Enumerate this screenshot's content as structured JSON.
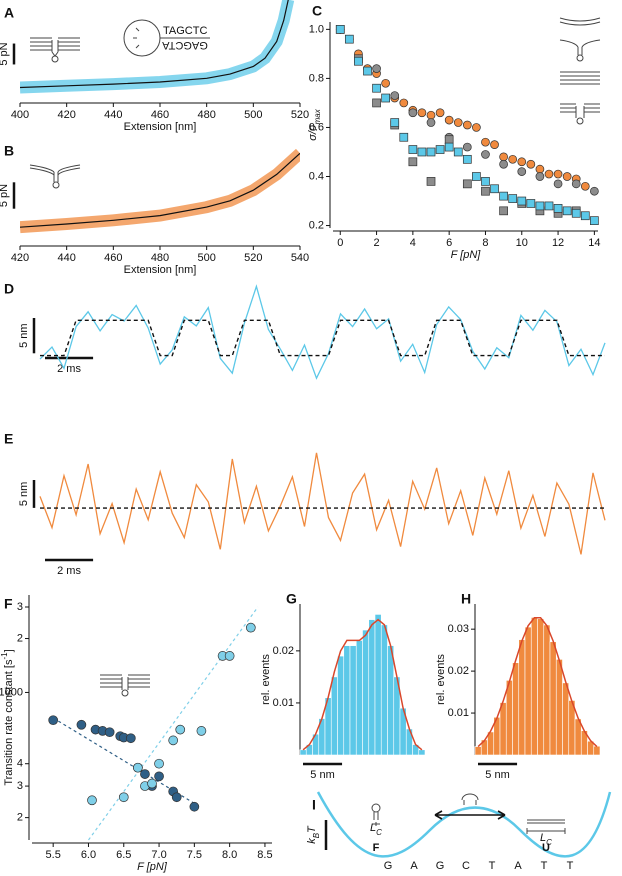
{
  "chart_data": [
    {
      "type": "line",
      "panel": "A",
      "color": "#5cc8e8",
      "xlabel": "Extension [nm]",
      "x": [
        400,
        420,
        440,
        460,
        480,
        490,
        500,
        505,
        510,
        513,
        515
      ],
      "values": [
        1,
        1.4,
        1.8,
        2.3,
        3.2,
        4.2,
        6,
        8,
        12,
        17,
        22
      ],
      "xlim": [
        400,
        520
      ],
      "xticks": [
        400,
        420,
        440,
        460,
        480,
        500,
        520
      ],
      "ylim": [
        -2,
        20
      ],
      "scalebar_y": {
        "value": 5,
        "label": "5 pN"
      },
      "inset_sequence": [
        "TAGCTC",
        "GAGCTA"
      ]
    },
    {
      "type": "line",
      "panel": "B",
      "color": "#f08a3e",
      "xlabel": "Extension [nm]",
      "x": [
        420,
        440,
        460,
        480,
        500,
        510,
        520,
        530,
        540
      ],
      "values": [
        1,
        1.6,
        2.3,
        3.2,
        4.8,
        6,
        8,
        11,
        15
      ],
      "xlim": [
        420,
        540
      ],
      "xticks": [
        420,
        440,
        460,
        480,
        500,
        520,
        540
      ],
      "ylim": [
        -2,
        16
      ],
      "scalebar_y": {
        "value": 5,
        "label": "5 pN"
      }
    },
    {
      "type": "scatter",
      "panel": "C",
      "xlabel": "F [pN]",
      "ylabel": [
        "σ/σ",
        "max"
      ],
      "xlim": [
        -0.4,
        14.2
      ],
      "xticks": [
        0,
        2,
        4,
        6,
        8,
        10,
        12,
        14
      ],
      "ylim": [
        0.19,
        1.03
      ],
      "yticks": [
        0.2,
        0.4,
        0.6,
        0.8,
        {
          "value": 1,
          "label": "1.0"
        }
      ],
      "series": [
        {
          "color": "#f08a3e",
          "marker": "circle",
          "x": [
            0,
            0.5,
            1,
            1.5,
            2,
            2.5,
            3,
            3.5,
            4,
            4.5,
            5,
            5.5,
            6,
            6.5,
            7,
            7.5,
            8,
            8.5,
            9,
            9.5,
            10,
            10.5,
            11,
            11.5,
            12,
            12.5,
            13,
            13.5
          ],
          "values": [
            1,
            0.96,
            0.9,
            0.84,
            0.82,
            0.78,
            0.72,
            0.7,
            0.67,
            0.66,
            0.65,
            0.66,
            0.63,
            0.62,
            0.61,
            0.6,
            0.54,
            0.53,
            0.48,
            0.47,
            0.46,
            0.45,
            0.43,
            0.41,
            0.41,
            0.4,
            0.39,
            0.36
          ]
        },
        {
          "color": "#8c8c8c",
          "marker": "circle",
          "x": [
            0,
            1,
            2,
            3,
            4,
            5,
            6,
            7,
            8,
            9,
            10,
            11,
            12,
            13,
            14
          ],
          "values": [
            1,
            0.88,
            0.84,
            0.73,
            0.66,
            0.62,
            0.56,
            0.52,
            0.49,
            0.45,
            0.42,
            0.4,
            0.37,
            0.37,
            0.34
          ]
        },
        {
          "color": "#8c8c8c",
          "marker": "square",
          "x": [
            0,
            1,
            2,
            3,
            4,
            5,
            6,
            7,
            8,
            9,
            10,
            11,
            12,
            13
          ],
          "values": [
            1,
            0.88,
            0.7,
            0.61,
            0.46,
            0.38,
            0.55,
            0.37,
            0.34,
            0.26,
            0.29,
            0.26,
            0.25,
            0.26
          ]
        },
        {
          "color": "#5cc8e8",
          "marker": "square",
          "x": [
            0,
            0.5,
            1,
            1.5,
            2,
            2.5,
            3,
            3.5,
            4,
            4.5,
            5,
            5.5,
            6,
            6.5,
            7,
            7.5,
            8,
            8.5,
            9,
            9.5,
            10,
            10.5,
            11,
            11.5,
            12,
            12.5,
            13,
            13.5,
            14
          ],
          "values": [
            1,
            0.96,
            0.87,
            0.83,
            0.76,
            0.72,
            0.62,
            0.56,
            0.51,
            0.5,
            0.5,
            0.51,
            0.52,
            0.5,
            0.47,
            0.4,
            0.38,
            0.35,
            0.32,
            0.31,
            0.3,
            0.29,
            0.28,
            0.28,
            0.27,
            0.26,
            0.25,
            0.24,
            0.22
          ]
        }
      ]
    },
    {
      "type": "trace",
      "panel": "D",
      "color": "#5cc8e8",
      "x": [
        0,
        0.5,
        1,
        1.5,
        2,
        2.5,
        3,
        3.5,
        4,
        4.5,
        5,
        5.5,
        6,
        6.5,
        7,
        7.5,
        8,
        8.5,
        9,
        9.5,
        10,
        10.5,
        11,
        11.5,
        12,
        12.5,
        13,
        13.5,
        14,
        14.5,
        15,
        15.5,
        16,
        16.5,
        17,
        17.5,
        18,
        18.5,
        19,
        19.5,
        20,
        20.5,
        21,
        21.5,
        22,
        22.5,
        23,
        23.5
      ],
      "values": [
        -0.5,
        1.2,
        -1.8,
        4.1,
        6.2,
        3.5,
        5.8,
        4.9,
        7.1,
        3.9,
        -1.2,
        0.8,
        5.5,
        4.2,
        6.8,
        -0.4,
        -2.5,
        4.6,
        9.8,
        3.7,
        0.9,
        -2.1,
        1.5,
        -3.2,
        0.3,
        5.9,
        4.1,
        6.6,
        3.8,
        5.2,
        -0.8,
        1.6,
        -2.4,
        4.4,
        6.9,
        5.1,
        0.6,
        -1.9,
        1.1,
        -0.3,
        5.7,
        3.6,
        6.4,
        4.8,
        -1.4,
        0.9,
        -2.7,
        1.8
      ],
      "fit": [
        0,
        0,
        0,
        5,
        5,
        5,
        5,
        5,
        5,
        5,
        0,
        0,
        5,
        5,
        5,
        0,
        0,
        5,
        5,
        5,
        0,
        0,
        0,
        0,
        0,
        5,
        5,
        5,
        5,
        5,
        0,
        0,
        0,
        5,
        5,
        5,
        0,
        0,
        0,
        0,
        5,
        5,
        5,
        5,
        0,
        0,
        0,
        0
      ],
      "xlim": [
        0,
        23.5
      ],
      "ylim": [
        -7,
        10
      ],
      "scalebar_y": {
        "value": 5,
        "label": "5 nm"
      },
      "scalebar_x": {
        "value": 2,
        "label": "2 ms"
      }
    },
    {
      "type": "trace",
      "panel": "E",
      "color": "#f08a3e",
      "x": [
        0,
        0.5,
        1,
        1.5,
        2,
        2.5,
        3,
        3.5,
        4,
        4.5,
        5,
        5.5,
        6,
        6.5,
        7,
        7.5,
        8,
        8.5,
        9,
        9.5,
        10,
        10.5,
        11,
        11.5,
        12,
        12.5,
        13,
        13.5,
        14,
        14.5,
        15,
        15.5,
        16,
        16.5,
        17,
        17.5,
        18,
        18.5,
        19,
        19.5,
        20,
        20.5,
        21,
        21.5,
        22,
        22.5,
        23,
        23.5
      ],
      "values": [
        2.1,
        -3.5,
        5.8,
        -1.2,
        7.9,
        -4.6,
        0.8,
        -6.2,
        3.4,
        -2.1,
        6.5,
        -0.9,
        -5.3,
        4.2,
        1.1,
        -7.4,
        8.8,
        -2.6,
        3.9,
        -4.1,
        0.4,
        5.6,
        -3.3,
        9.9,
        -1.7,
        -5.8,
        2.7,
        6.1,
        -3.9,
        1.4,
        -6.9,
        4.8,
        -0.2,
        7.2,
        -2.8,
        3.1,
        -4.9,
        5.4,
        -1.1,
        6.7,
        -3.6,
        2.3,
        -5.1,
        4.5,
        0.7,
        -8.3,
        6.3,
        -2.2
      ],
      "level": 0,
      "xlim": [
        0,
        23.5
      ],
      "ylim": [
        -12,
        14
      ],
      "scalebar_y": {
        "value": 5,
        "label": "5 nm"
      },
      "scalebar_x": {
        "value": 2,
        "label": "2 ms"
      }
    },
    {
      "type": "scatter",
      "panel": "F",
      "xlabel": "F [pN]",
      "ylabel": [
        "Transition rate constant [s",
        "-1",
        "]"
      ],
      "ylog": true,
      "xlim": [
        5.2,
        8.6
      ],
      "xticks": [
        5.5,
        {
          "value": 6,
          "label": "6.0"
        },
        6.5,
        {
          "value": 7,
          "label": "7.0"
        },
        7.5,
        {
          "value": 8,
          "label": "8.0"
        },
        8.5
      ],
      "ylim": [
        150,
        3500
      ],
      "yticks": [
        {
          "value": 200,
          "label": "2"
        },
        {
          "value": 300,
          "label": "3"
        },
        {
          "value": 400,
          "label": "4"
        },
        1000,
        {
          "value": 2000,
          "label": "2"
        },
        {
          "value": 3000,
          "label": "3"
        }
      ],
      "series": [
        {
          "color": "#2f5f86",
          "marker": "circle",
          "x": [
            5.5,
            5.9,
            6.1,
            6.2,
            6.3,
            6.45,
            6.5,
            6.6,
            6.7,
            6.8,
            6.9,
            7.0,
            7.2,
            7.25,
            7.5
          ],
          "values": [
            700,
            660,
            620,
            610,
            600,
            570,
            560,
            555,
            380,
            350,
            300,
            340,
            280,
            260,
            230
          ],
          "fit_x": [
            5.5,
            7.5
          ],
          "fit_y": [
            720,
            240
          ]
        },
        {
          "color": "#7fcfe8",
          "marker": "circle",
          "x": [
            6.05,
            6.5,
            6.7,
            6.8,
            6.9,
            7.0,
            7.2,
            7.3,
            7.6,
            7.9,
            8.0,
            8.3
          ],
          "values": [
            250,
            260,
            380,
            300,
            310,
            400,
            540,
            620,
            610,
            1600,
            1600,
            2300
          ],
          "fit_x": [
            6.0,
            8.4
          ],
          "fit_y": [
            150,
            3000
          ]
        }
      ]
    },
    {
      "type": "histogram",
      "panel": "G",
      "color": "#5cc8e8",
      "fit_color": "#d9472b",
      "ylabel": "rel. events",
      "bins": [
        -8,
        -7.2,
        -6.4,
        -5.6,
        -4.8,
        -4,
        -3.2,
        -2.4,
        -1.6,
        -0.8,
        0,
        0.8,
        1.6,
        2.4,
        3.2,
        4,
        4.8,
        5.6,
        6.4,
        7.2,
        8
      ],
      "counts": [
        0.001,
        0.002,
        0.004,
        0.007,
        0.011,
        0.015,
        0.019,
        0.021,
        0.021,
        0.022,
        0.024,
        0.026,
        0.027,
        0.025,
        0.021,
        0.015,
        0.009,
        0.005,
        0.002,
        0.001
      ],
      "fit_x": [
        -7.6,
        -6.8,
        -6,
        -5.2,
        -4.4,
        -3.6,
        -2.8,
        -2,
        -1.2,
        -0.4,
        0.4,
        1.2,
        2,
        2.8,
        3.6,
        4.4,
        5.2,
        6,
        6.8,
        7.6
      ],
      "fit": [
        0.001,
        0.002,
        0.004,
        0.007,
        0.011,
        0.016,
        0.02,
        0.022,
        0.022,
        0.022,
        0.023,
        0.025,
        0.026,
        0.025,
        0.021,
        0.015,
        0.009,
        0.005,
        0.002,
        0.001
      ],
      "xlim": [
        -8,
        8
      ],
      "ylim": [
        0,
        0.029
      ],
      "yticks": [
        0.01,
        0.02
      ],
      "scalebar_x": {
        "value": 5,
        "label": "5 nm"
      }
    },
    {
      "type": "histogram",
      "panel": "H",
      "color": "#f08a3e",
      "fit_color": "#d9472b",
      "ylabel": "rel. events",
      "bins": [
        -8,
        -7.2,
        -6.4,
        -5.6,
        -4.8,
        -4,
        -3.2,
        -2.4,
        -1.6,
        -0.8,
        0,
        0.8,
        1.6,
        2.4,
        3.2,
        4,
        4.8,
        5.6,
        6.4,
        7.2,
        8
      ],
      "counts": [
        0.002,
        0.0036,
        0.0055,
        0.009,
        0.0125,
        0.0178,
        0.022,
        0.0275,
        0.0305,
        0.0328,
        0.0325,
        0.031,
        0.027,
        0.0228,
        0.0172,
        0.013,
        0.0086,
        0.0058,
        0.0033,
        0.0021
      ],
      "fit_x": [
        -7.6,
        -6.8,
        -6,
        -5.2,
        -4.4,
        -3.6,
        -2.8,
        -2,
        -1.2,
        -0.4,
        0.4,
        1.2,
        2,
        2.8,
        3.6,
        4.4,
        5.2,
        6,
        6.8,
        7.6
      ],
      "fit": [
        0.002,
        0.0034,
        0.0057,
        0.0088,
        0.0128,
        0.0175,
        0.0225,
        0.0272,
        0.0308,
        0.0327,
        0.0327,
        0.0308,
        0.0272,
        0.0225,
        0.0175,
        0.0128,
        0.0088,
        0.0057,
        0.0034,
        0.002
      ],
      "xlim": [
        -8,
        8
      ],
      "ylim": [
        0,
        0.036
      ],
      "yticks": [
        0.01,
        0.02,
        0.03
      ],
      "scalebar_x": {
        "value": 5,
        "label": "5 nm"
      }
    }
  ],
  "diagram": {
    "panel": "I",
    "states": [
      "F",
      "U"
    ],
    "energy_label": [
      "k",
      "B",
      "T"
    ],
    "contour_label": [
      "L",
      "C"
    ],
    "sequence": [
      "G",
      "A",
      "G",
      "C",
      "T",
      "A",
      "T",
      "T"
    ]
  }
}
